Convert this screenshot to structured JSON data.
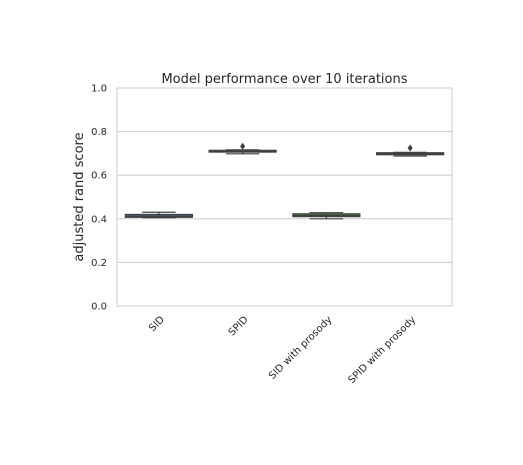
{
  "chart_data": {
    "type": "box",
    "title": "Model performance over 10 iterations",
    "ylabel": "adjusted rand score",
    "xlabel": "",
    "ylim": [
      0.0,
      1.0
    ],
    "yticks": [
      "0.0",
      "0.2",
      "0.4",
      "0.6",
      "0.8",
      "1.0"
    ],
    "grid": "horizontal",
    "categories": [
      "SID",
      "SPID",
      "SID with prosody",
      "SPID with prosody"
    ],
    "boxes": [
      {
        "category": "SID",
        "whisker_low": 0.405,
        "q1": 0.407,
        "median": 0.412,
        "q3": 0.42,
        "whisker_high": 0.43,
        "outliers": [],
        "color": "#3b75af"
      },
      {
        "category": "SPID",
        "whisker_low": 0.698,
        "q1": 0.706,
        "median": 0.709,
        "q3": 0.714,
        "whisker_high": 0.716,
        "outliers": [
          0.733
        ],
        "color": "#e1812c"
      },
      {
        "category": "SID with prosody",
        "whisker_low": 0.4,
        "q1": 0.41,
        "median": 0.415,
        "q3": 0.423,
        "whisker_high": 0.428,
        "outliers": [],
        "color": "#3a923a"
      },
      {
        "category": "SPID with prosody",
        "whisker_low": 0.688,
        "q1": 0.694,
        "median": 0.698,
        "q3": 0.703,
        "whisker_high": 0.705,
        "outliers": [
          0.725
        ],
        "color": "#c03d3e"
      }
    ]
  }
}
